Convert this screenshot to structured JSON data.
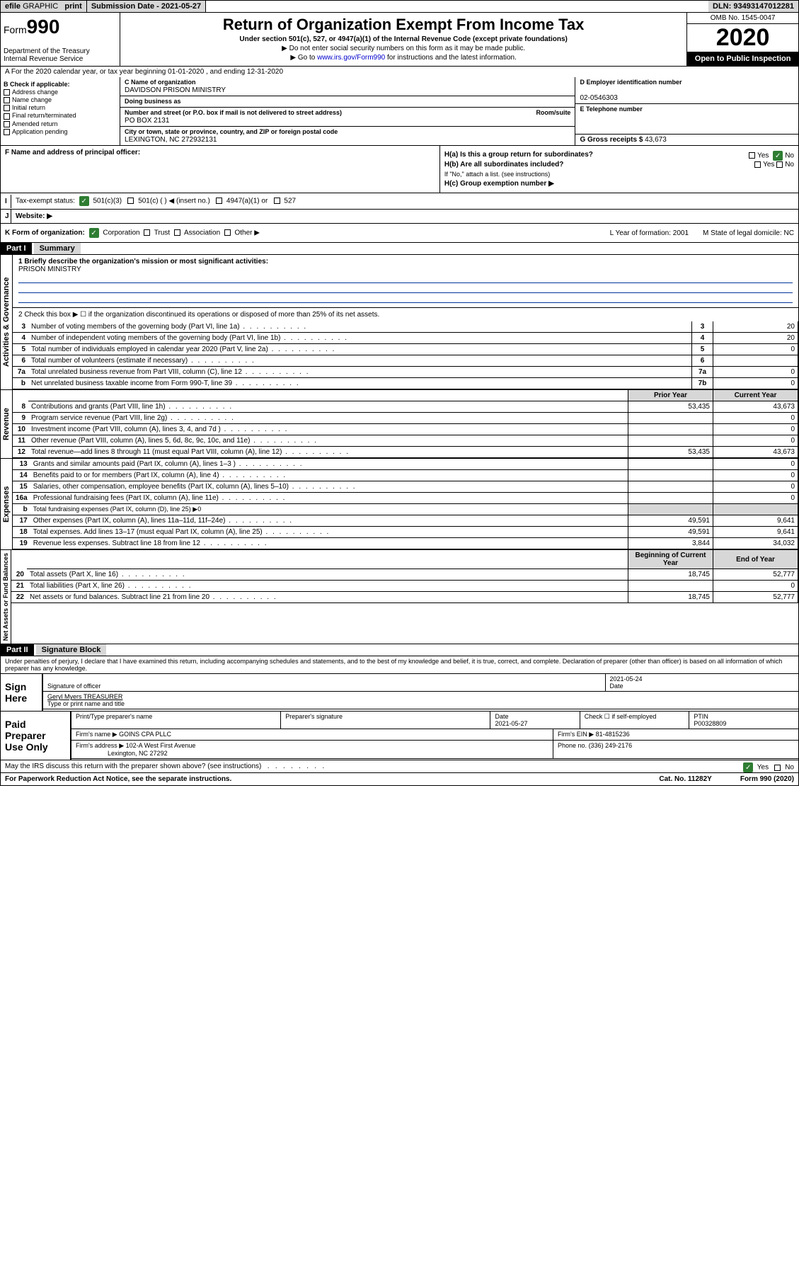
{
  "topbar": {
    "efile_prefix": "efile",
    "efile_suffix": "GRAPHIC",
    "print": "print",
    "submission": "Submission Date - 2021-05-27",
    "dln": "DLN: 93493147012281"
  },
  "header": {
    "form_label": "Form",
    "form_number": "990",
    "dept": "Department of the Treasury\nInternal Revenue Service",
    "title": "Return of Organization Exempt From Income Tax",
    "subtitle": "Under section 501(c), 527, or 4947(a)(1) of the Internal Revenue Code (except private foundations)",
    "note1": "▶ Do not enter social security numbers on this form as it may be made public.",
    "note2_pre": "▶ Go to ",
    "note2_link": "www.irs.gov/Form990",
    "note2_post": " for instructions and the latest information.",
    "omb": "OMB No. 1545-0047",
    "year": "2020",
    "open": "Open to Public Inspection"
  },
  "row_a": "A For the 2020 calendar year, or tax year beginning 01-01-2020   , and ending 12-31-2020",
  "section_b": {
    "label": "B Check if applicable:",
    "items": [
      "Address change",
      "Name change",
      "Initial return",
      "Final return/terminated",
      "Amended return",
      "Application pending"
    ]
  },
  "section_c": {
    "name_lbl": "C Name of organization",
    "name": "DAVIDSON PRISON MINISTRY",
    "dba_lbl": "Doing business as",
    "addr_lbl": "Number and street (or P.O. box if mail is not delivered to street address)",
    "room_lbl": "Room/suite",
    "addr": "PO BOX 2131",
    "city_lbl": "City or town, state or province, country, and ZIP or foreign postal code",
    "city": "LEXINGTON, NC  272932131"
  },
  "section_d": {
    "lbl": "D Employer identification number",
    "val": "02-0546303"
  },
  "section_e": {
    "lbl": "E Telephone number",
    "val": ""
  },
  "section_g": {
    "lbl": "G Gross receipts $",
    "val": "43,673"
  },
  "section_f": {
    "lbl": "F  Name and address of principal officer:",
    "val": ""
  },
  "section_h": {
    "ha": "H(a)  Is this a group return for subordinates?",
    "hb": "H(b)  Are all subordinates included?",
    "hb_note": "If \"No,\" attach a list. (see instructions)",
    "hc": "H(c)  Group exemption number ▶",
    "yes": "Yes",
    "no": "No"
  },
  "row_i": {
    "lbl": "Tax-exempt status:",
    "opts": [
      "501(c)(3)",
      "501(c) (  ) ◀ (insert no.)",
      "4947(a)(1) or",
      "527"
    ]
  },
  "row_j": {
    "lbl": "Website: ▶",
    "val": ""
  },
  "row_k": {
    "lbl": "K Form of organization:",
    "opts": [
      "Corporation",
      "Trust",
      "Association",
      "Other ▶"
    ],
    "l": "L Year of formation: 2001",
    "m": "M State of legal domicile: NC"
  },
  "part1": {
    "hdr": "Part I",
    "title": "Summary",
    "line1_lbl": "1  Briefly describe the organization's mission or most significant activities:",
    "line1_val": "PRISON MINISTRY",
    "line2": "2   Check this box ▶ ☐  if the organization discontinued its operations or disposed of more than 25% of its net assets.",
    "rows_ag": [
      {
        "n": "3",
        "t": "Number of voting members of the governing body (Part VI, line 1a)",
        "k": "3",
        "v": "20"
      },
      {
        "n": "4",
        "t": "Number of independent voting members of the governing body (Part VI, line 1b)",
        "k": "4",
        "v": "20"
      },
      {
        "n": "5",
        "t": "Total number of individuals employed in calendar year 2020 (Part V, line 2a)",
        "k": "5",
        "v": "0"
      },
      {
        "n": "6",
        "t": "Total number of volunteers (estimate if necessary)",
        "k": "6",
        "v": ""
      },
      {
        "n": "7a",
        "t": "Total unrelated business revenue from Part VIII, column (C), line 12",
        "k": "7a",
        "v": "0"
      },
      {
        "n": "b",
        "t": "Net unrelated business taxable income from Form 990-T, line 39",
        "k": "7b",
        "v": "0"
      }
    ],
    "th_prior": "Prior Year",
    "th_current": "Current Year",
    "rows_rev": [
      {
        "n": "8",
        "t": "Contributions and grants (Part VIII, line 1h)",
        "p": "53,435",
        "c": "43,673"
      },
      {
        "n": "9",
        "t": "Program service revenue (Part VIII, line 2g)",
        "p": "",
        "c": "0"
      },
      {
        "n": "10",
        "t": "Investment income (Part VIII, column (A), lines 3, 4, and 7d )",
        "p": "",
        "c": "0"
      },
      {
        "n": "11",
        "t": "Other revenue (Part VIII, column (A), lines 5, 6d, 8c, 9c, 10c, and 11e)",
        "p": "",
        "c": "0"
      },
      {
        "n": "12",
        "t": "Total revenue—add lines 8 through 11 (must equal Part VIII, column (A), line 12)",
        "p": "53,435",
        "c": "43,673"
      }
    ],
    "rows_exp": [
      {
        "n": "13",
        "t": "Grants and similar amounts paid (Part IX, column (A), lines 1–3 )",
        "p": "",
        "c": "0"
      },
      {
        "n": "14",
        "t": "Benefits paid to or for members (Part IX, column (A), line 4)",
        "p": "",
        "c": "0"
      },
      {
        "n": "15",
        "t": "Salaries, other compensation, employee benefits (Part IX, column (A), lines 5–10)",
        "p": "",
        "c": "0"
      },
      {
        "n": "16a",
        "t": "Professional fundraising fees (Part IX, column (A), line 11e)",
        "p": "",
        "c": "0"
      },
      {
        "n": "b",
        "t": "Total fundraising expenses (Part IX, column (D), line 25) ▶0",
        "p": "—",
        "c": "—"
      },
      {
        "n": "17",
        "t": "Other expenses (Part IX, column (A), lines 11a–11d, 11f–24e)",
        "p": "49,591",
        "c": "9,641"
      },
      {
        "n": "18",
        "t": "Total expenses. Add lines 13–17 (must equal Part IX, column (A), line 25)",
        "p": "49,591",
        "c": "9,641"
      },
      {
        "n": "19",
        "t": "Revenue less expenses. Subtract line 18 from line 12",
        "p": "3,844",
        "c": "34,032"
      }
    ],
    "th_begin": "Beginning of Current Year",
    "th_end": "End of Year",
    "rows_net": [
      {
        "n": "20",
        "t": "Total assets (Part X, line 16)",
        "p": "18,745",
        "c": "52,777"
      },
      {
        "n": "21",
        "t": "Total liabilities (Part X, line 26)",
        "p": "",
        "c": "0"
      },
      {
        "n": "22",
        "t": "Net assets or fund balances. Subtract line 21 from line 20",
        "p": "18,745",
        "c": "52,777"
      }
    ],
    "vert_ag": "Activities & Governance",
    "vert_rev": "Revenue",
    "vert_exp": "Expenses",
    "vert_net": "Net Assets or Fund Balances"
  },
  "part2": {
    "hdr": "Part II",
    "title": "Signature Block",
    "penalty": "Under penalties of perjury, I declare that I have examined this return, including accompanying schedules and statements, and to the best of my knowledge and belief, it is true, correct, and complete. Declaration of preparer (other than officer) is based on all information of which preparer has any knowledge."
  },
  "sign": {
    "here": "Sign Here",
    "sig_officer": "Signature of officer",
    "date_lbl": "Date",
    "date": "2021-05-24",
    "name": "Geryl Myers  TREASURER",
    "name_lbl": "Type or print name and title"
  },
  "paid": {
    "lbl": "Paid Preparer Use Only",
    "h1": "Print/Type preparer's name",
    "h2": "Preparer's signature",
    "h3": "Date",
    "h3v": "2021-05-27",
    "h4": "Check ☐ if self-employed",
    "h5": "PTIN",
    "h5v": "P00328809",
    "firm_lbl": "Firm's name    ▶",
    "firm": "GOINS CPA PLLC",
    "ein_lbl": "Firm's EIN ▶",
    "ein": "81-4815236",
    "addr_lbl": "Firm's address ▶",
    "addr": "102-A West First Avenue",
    "addr2": "Lexington, NC  27292",
    "phone_lbl": "Phone no.",
    "phone": "(336) 249-2176"
  },
  "discuss": "May the IRS discuss this return with the preparer shown above? (see instructions)",
  "discuss_yes": "Yes",
  "discuss_no": "No",
  "footer": {
    "pra": "For Paperwork Reduction Act Notice, see the separate instructions.",
    "cat": "Cat. No. 11282Y",
    "form": "Form 990 (2020)"
  },
  "colors": {
    "header_gray": "#d7d7d7",
    "link_blue": "#0000cc",
    "check_green": "#2e7d32",
    "underline_blue": "#003399"
  }
}
